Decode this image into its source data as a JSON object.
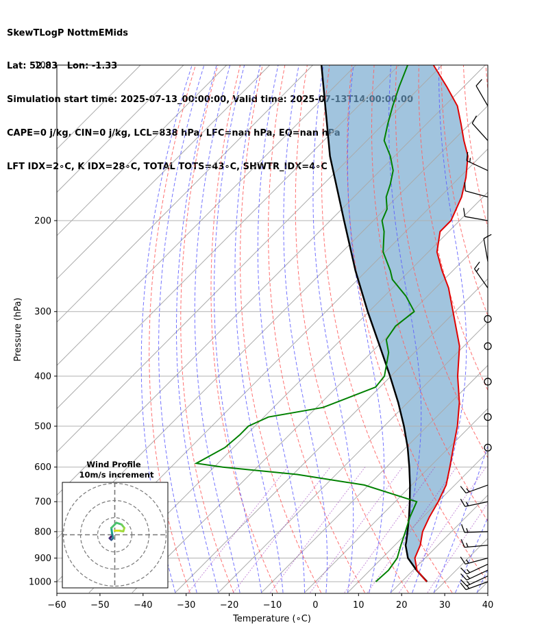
{
  "header": {
    "line1": "SkewTLogP NottmEMids",
    "line2": "Lat: 52.83   Lon: -1.33",
    "line3": "Simulation start time: 2025-07-13_00:00:00, Valid time: 2025-07-13T14:00:00.00",
    "line4": "CAPE=0 j/kg, CIN=0 j/kg, LCL=838 hPa, LFC=nan hPa, EQ=nan hPa",
    "line5": "LFT IDX=2∘C, K IDX=28∘C, TOTAL TOTS=43∘C, SHWTR_IDX=4∘C"
  },
  "colors": {
    "temperature": "#e00000",
    "dewpoint": "#008000",
    "parcel": "#000000",
    "cape_fill": "#6fa5cc",
    "dry_adiabat": "#ff6060",
    "moist_adiabat": "#5a5aff",
    "mixing_ratio": "#a040c0",
    "isotherm": "#aaaaaa"
  },
  "chart_data": {
    "type": "line",
    "title": "SkewTLogP NottmEMids",
    "xlabel": "Temperature (∘C)",
    "ylabel": "Pressure (hPa)",
    "xlim": [
      -60,
      40
    ],
    "ylim": [
      1050,
      100
    ],
    "x_ticks": [
      "−60",
      "−50",
      "−40",
      "−30",
      "−20",
      "−10",
      "0",
      "10",
      "20",
      "30",
      "40"
    ],
    "x_tick_values": [
      -60,
      -50,
      -40,
      -30,
      -20,
      -10,
      0,
      10,
      20,
      30,
      40
    ],
    "y_ticks": [
      "100",
      "200",
      "300",
      "400",
      "500",
      "600",
      "700",
      "800",
      "900",
      "1000"
    ],
    "y_tick_values": [
      100,
      200,
      300,
      400,
      500,
      600,
      700,
      800,
      900,
      1000
    ],
    "series": [
      {
        "name": "Temperature",
        "pressure": [
          1000,
          950,
          900,
          850,
          800,
          750,
          700,
          650,
          600,
          550,
          500,
          450,
          400,
          350,
          300,
          270,
          250,
          230,
          210,
          200,
          180,
          165,
          150,
          140,
          130,
          120,
          110,
          100
        ],
        "values": [
          25.8,
          20.9,
          17.6,
          15.9,
          13.3,
          11.5,
          10.0,
          8.0,
          4.7,
          1.0,
          -3.0,
          -8.0,
          -14.5,
          -21.0,
          -30.5,
          -37.0,
          -42.5,
          -48.0,
          -52.0,
          -52.0,
          -55.0,
          -58.5,
          -63.0,
          -67.5,
          -72.0,
          -77.0,
          -84.0,
          -92.0
        ]
      },
      {
        "name": "Dewpoint",
        "pressure": [
          1000,
          950,
          900,
          850,
          800,
          750,
          700,
          650,
          620,
          600,
          590,
          550,
          520,
          500,
          480,
          460,
          420,
          400,
          360,
          340,
          320,
          300,
          280,
          260,
          250,
          230,
          210,
          200,
          190,
          180,
          170,
          160,
          150,
          140,
          130,
          120,
          110,
          100
        ],
        "values": [
          14.0,
          14.3,
          13.5,
          11.4,
          9.3,
          7.0,
          5.0,
          -11.0,
          -29.0,
          -48.0,
          -55.0,
          -52.0,
          -51.5,
          -51.5,
          -49.0,
          -38.5,
          -31.0,
          -31.5,
          -36.0,
          -39.5,
          -40.5,
          -39.5,
          -45.0,
          -52.0,
          -54.5,
          -60.5,
          -65.0,
          -68.0,
          -69.5,
          -72.5,
          -74.5,
          -77.0,
          -81.0,
          -86.0,
          -89.0,
          -92.0,
          -95.0,
          -98.0
        ]
      },
      {
        "name": "Parcel",
        "pressure": [
          1000,
          950,
          900,
          850,
          838,
          800,
          750,
          700,
          650,
          600,
          550,
          500,
          450,
          400,
          350,
          300,
          250,
          200,
          150,
          100
        ],
        "values": [
          25.9,
          20.8,
          16.0,
          12.5,
          11.9,
          9.8,
          6.8,
          3.4,
          -0.4,
          -4.7,
          -9.6,
          -15.4,
          -22.2,
          -30.2,
          -39.5,
          -50.3,
          -62.6,
          -76.8,
          -95.0,
          -118.0
        ]
      }
    ],
    "wind_barbs_knots": [
      {
        "p": 1000,
        "speed": 15,
        "dir": 250
      },
      {
        "p": 975,
        "speed": 15,
        "dir": 245
      },
      {
        "p": 950,
        "speed": 15,
        "dir": 245
      },
      {
        "p": 925,
        "speed": 15,
        "dir": 245
      },
      {
        "p": 900,
        "speed": 15,
        "dir": 255
      },
      {
        "p": 850,
        "speed": 15,
        "dir": 265
      },
      {
        "p": 800,
        "speed": 15,
        "dir": 268
      },
      {
        "p": 700,
        "speed": 15,
        "dir": 258
      },
      {
        "p": 650,
        "speed": 15,
        "dir": 250
      },
      {
        "p": 550,
        "speed": 0,
        "dir": 0
      },
      {
        "p": 480,
        "speed": 0,
        "dir": 0
      },
      {
        "p": 410,
        "speed": 0,
        "dir": 0
      },
      {
        "p": 350,
        "speed": 0,
        "dir": 0
      },
      {
        "p": 310,
        "speed": 0,
        "dir": 0
      },
      {
        "p": 270,
        "speed": 15,
        "dir": 325
      },
      {
        "p": 240,
        "speed": 10,
        "dir": 350
      },
      {
        "p": 200,
        "speed": 10,
        "dir": 280
      },
      {
        "p": 180,
        "speed": 10,
        "dir": 285
      },
      {
        "p": 160,
        "speed": 15,
        "dir": 295
      },
      {
        "p": 140,
        "speed": 10,
        "dir": 318
      },
      {
        "p": 120,
        "speed": 10,
        "dir": 330
      }
    ],
    "hodograph": {
      "title_line1": "Wind Profile",
      "title_line2": "10m/s increment",
      "ring_step_ms": 10,
      "rings": [
        10,
        20,
        30
      ],
      "points_uv": [
        [
          -1.0,
          -0.5
        ],
        [
          -1.5,
          -1.0
        ],
        [
          -1.0,
          -1.5
        ],
        [
          -0.5,
          -1.0
        ],
        [
          -0.8,
          0.5
        ],
        [
          -1.0,
          2.0
        ],
        [
          0.5,
          3.5
        ],
        [
          2.0,
          3.0
        ],
        [
          2.8,
          2.0
        ],
        [
          2.5,
          1.0
        ],
        [
          1.2,
          1.2
        ],
        [
          0.0,
          1.2
        ]
      ]
    }
  }
}
